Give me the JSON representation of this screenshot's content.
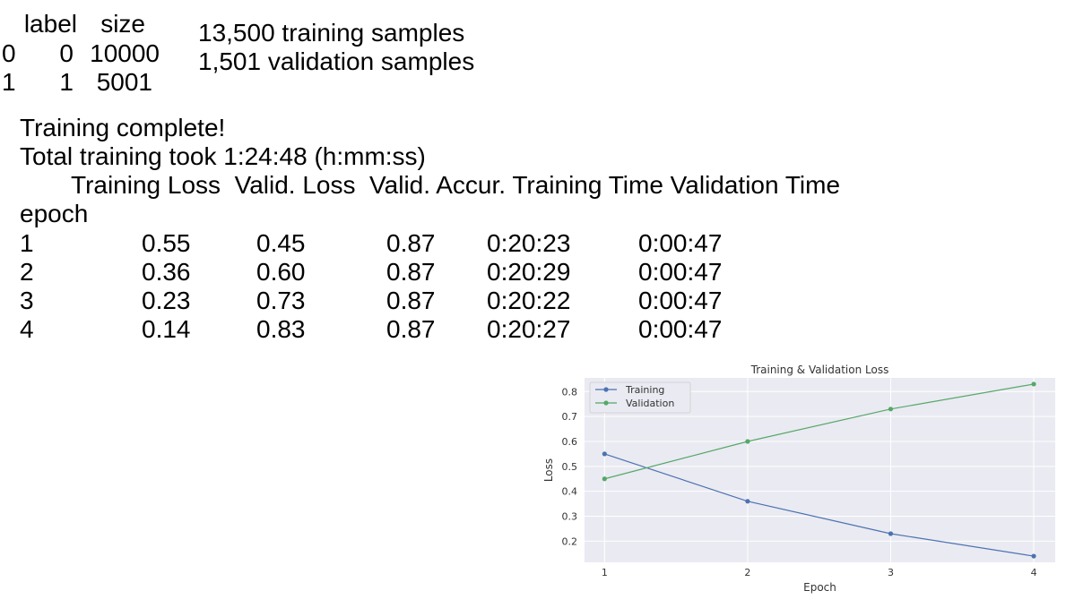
{
  "df_table": {
    "headers": [
      "label",
      "size"
    ],
    "rows": [
      {
        "index": "0",
        "label": "0",
        "size": "10000"
      },
      {
        "index": "1",
        "label": "1",
        "size": "5001"
      }
    ]
  },
  "samples": {
    "training": "13,500 training samples",
    "validation": "1,501 validation samples"
  },
  "status": {
    "complete": "Training complete!",
    "duration": "Total training took 1:24:48 (h:mm:ss)"
  },
  "stats_table": {
    "header_line": "Training Loss  Valid. Loss  Valid. Accur. Training Time Validation Time",
    "index_name": "epoch",
    "rows": [
      {
        "epoch": "1",
        "train_loss": "0.55",
        "valid_loss": "0.45",
        "valid_accur": "0.87",
        "train_time": "0:20:23",
        "valid_time": "0:00:47"
      },
      {
        "epoch": "2",
        "train_loss": "0.36",
        "valid_loss": "0.60",
        "valid_accur": "0.87",
        "train_time": "0:20:29",
        "valid_time": "0:00:47"
      },
      {
        "epoch": "3",
        "train_loss": "0.23",
        "valid_loss": "0.73",
        "valid_accur": "0.87",
        "train_time": "0:20:22",
        "valid_time": "0:00:47"
      },
      {
        "epoch": "4",
        "train_loss": "0.14",
        "valid_loss": "0.83",
        "valid_accur": "0.87",
        "train_time": "0:20:27",
        "valid_time": "0:00:47"
      }
    ]
  },
  "chart_data": {
    "type": "line",
    "title": "Training & Validation Loss",
    "xlabel": "Epoch",
    "ylabel": "Loss",
    "x": [
      1,
      2,
      3,
      4
    ],
    "xticks": [
      "1",
      "2",
      "3",
      "4"
    ],
    "yticks": [
      "0.2",
      "0.3",
      "0.4",
      "0.5",
      "0.6",
      "0.7",
      "0.8"
    ],
    "xlim": [
      0.86,
      4.15
    ],
    "ylim": [
      0.115,
      0.855
    ],
    "grid": true,
    "legend_position": "upper-left",
    "background_color": "#eaeaf2",
    "series": [
      {
        "name": "Training",
        "color": "#4c72b0",
        "values": [
          0.55,
          0.36,
          0.23,
          0.14
        ]
      },
      {
        "name": "Validation",
        "color": "#55a868",
        "values": [
          0.45,
          0.6,
          0.73,
          0.83
        ]
      }
    ]
  }
}
